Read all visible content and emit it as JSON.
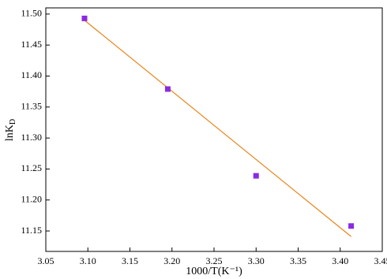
{
  "chart_data": {
    "type": "scatter",
    "x_label": "1000/T(K⁻¹)",
    "y_label": {
      "text": "lnK",
      "sub": "D"
    },
    "xlim": [
      3.05,
      3.45
    ],
    "xticks": [
      3.05,
      {
        "value": 3.1,
        "label": "3.10"
      },
      3.15,
      {
        "value": 3.2,
        "label": "3.20"
      },
      3.25,
      {
        "value": 3.3,
        "label": "3.30"
      },
      3.35,
      {
        "value": 3.4,
        "label": "3.40"
      },
      3.45
    ],
    "ylim": [
      11.117,
      11.51
    ],
    "yticks": [
      {
        "value": 11.15,
        "label": "11.15"
      },
      {
        "value": 11.2,
        "label": "11.20"
      },
      {
        "value": 11.25,
        "label": "11.25"
      },
      {
        "value": 11.3,
        "label": "11.30"
      },
      {
        "value": 11.35,
        "label": "11.35"
      },
      {
        "value": 11.4,
        "label": "11.40"
      },
      {
        "value": 11.45,
        "label": "11.45"
      },
      {
        "value": 11.5,
        "label": "11.50"
      }
    ],
    "series": [
      {
        "type": "scatter",
        "marker": "square",
        "color": "#8a2be2",
        "x": [
          3.096,
          3.195,
          3.3,
          3.413
        ],
        "values": [
          11.493,
          11.379,
          11.239,
          11.158
        ]
      },
      {
        "type": "line",
        "color": "#e8841a",
        "x": [
          3.096,
          3.413
        ],
        "values": [
          11.49,
          11.141
        ]
      }
    ]
  }
}
